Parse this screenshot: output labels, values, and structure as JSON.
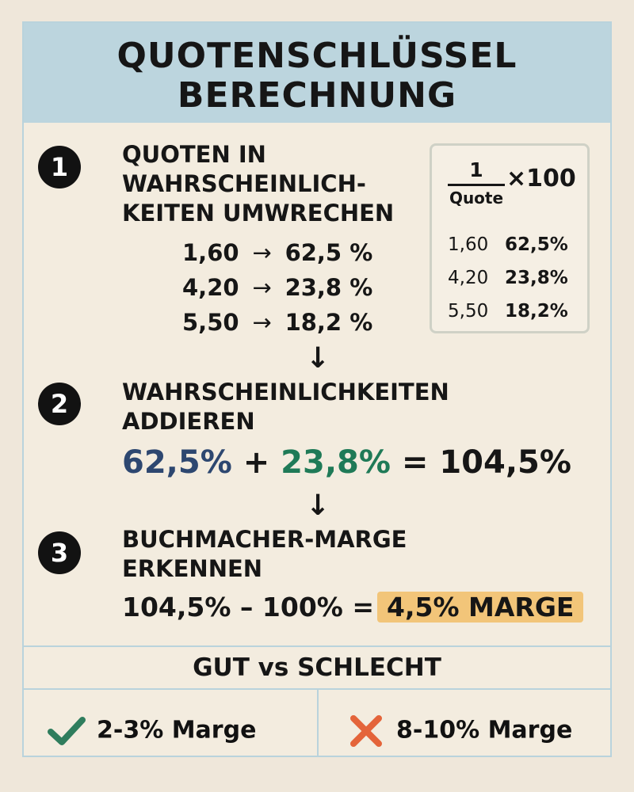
{
  "title": {
    "line1": "QUOTENSCHLÜSSEL",
    "line2": "BERECHNUNG"
  },
  "step1": {
    "number": "1",
    "heading_line1": "QUOTEN IN",
    "heading_line2": "WAHRSCHEINLICH-",
    "heading_line3": "KEITEN UMWRECHEN",
    "conversions": [
      {
        "odds": "1,60",
        "arrow": "→",
        "probability": "62,5 %"
      },
      {
        "odds": "4,20",
        "arrow": "→",
        "probability": "23,8 %"
      },
      {
        "odds": "5,50",
        "arrow": "→",
        "probability": "18,2 %"
      }
    ]
  },
  "formula_box": {
    "numerator": "1",
    "denominator": "Quote",
    "multiplier": "×100",
    "rows": [
      {
        "odds": "1,60",
        "probability": "62,5%"
      },
      {
        "odds": "4,20",
        "probability": "23,8%"
      },
      {
        "odds": "5,50",
        "probability": "18,2%"
      }
    ]
  },
  "arrows": {
    "down": "↓"
  },
  "step2": {
    "number": "2",
    "heading_line1": "WAHRSCHEINLICHKEITEN",
    "heading_line2": "ADDIEREN",
    "term1": "62,5%",
    "plus": "+",
    "term2": "23,8%",
    "equals": "=",
    "result": "104,5%"
  },
  "step3": {
    "number": "3",
    "heading_line1": "BUCHMACHER-MARGE",
    "heading_line2": "ERKENNEN",
    "expression": "104,5% – 100% =",
    "badge": "4,5% MARGE"
  },
  "comparison": {
    "title": "GUT vs SCHLECHT",
    "good": {
      "label": "2-3% Marge",
      "icon": "check-icon",
      "color": "#2f7d5d"
    },
    "bad": {
      "label": "8-10% Marge",
      "icon": "cross-icon",
      "color": "#e4643a"
    }
  },
  "colors": {
    "header": "#bcd5de",
    "background": "#efe7da",
    "blue": "#2d4770",
    "green": "#1f7a57",
    "badge": "#f2c579"
  }
}
